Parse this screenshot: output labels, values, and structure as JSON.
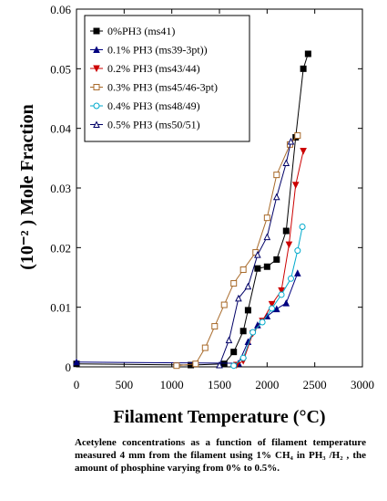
{
  "chart_data": {
    "type": "line",
    "title": "",
    "xlabel": "Filament Temperature (°C)",
    "ylabel": "(10⁻² ) Mole Fraction",
    "xlim": [
      0,
      3000
    ],
    "ylim": [
      0,
      0.06
    ],
    "xticks": [
      "0",
      "500",
      "1000",
      "1500",
      "2000",
      "2500",
      "3000"
    ],
    "yticks": [
      "0",
      "0.01",
      "0.02",
      "0.03",
      "0.04",
      "0.05",
      "0.06"
    ],
    "grid": false,
    "legend_position": "top-left",
    "series": [
      {
        "name": "0%PH3 (ms41)",
        "color": "#000000",
        "marker": "square-filled",
        "points": [
          [
            0,
            0.0005
          ],
          [
            1200,
            0.0003
          ],
          [
            1550,
            0.0005
          ],
          [
            1650,
            0.0025
          ],
          [
            1750,
            0.006
          ],
          [
            1800,
            0.0095
          ],
          [
            1900,
            0.0165
          ],
          [
            2000,
            0.0168
          ],
          [
            2100,
            0.018
          ],
          [
            2200,
            0.0228
          ],
          [
            2300,
            0.0385
          ],
          [
            2380,
            0.05
          ],
          [
            2430,
            0.0525
          ]
        ]
      },
      {
        "name": "0.1% PH3 (ms39-3pt))",
        "color": "#00007f",
        "marker": "triangle-filled",
        "points": [
          [
            0,
            0.0008
          ],
          [
            1700,
            0.0006
          ],
          [
            1800,
            0.0042
          ],
          [
            1900,
            0.007
          ],
          [
            2000,
            0.0085
          ],
          [
            2100,
            0.0097
          ],
          [
            2200,
            0.0107
          ],
          [
            2320,
            0.0157
          ]
        ]
      },
      {
        "name": "0.2% PH3 (ms43/44)",
        "color": "#cc0000",
        "marker": "triangle-down-filled",
        "points": [
          [
            1680,
            0.0003
          ],
          [
            1750,
            0.001
          ],
          [
            1850,
            0.0056
          ],
          [
            1950,
            0.0077
          ],
          [
            2050,
            0.0105
          ],
          [
            2150,
            0.0128
          ],
          [
            2230,
            0.0205
          ],
          [
            2300,
            0.0305
          ],
          [
            2380,
            0.0362
          ]
        ]
      },
      {
        "name": "0.3% PH3 (ms45/46-3pt)",
        "color": "#a86a2a",
        "marker": "square-open",
        "points": [
          [
            1050,
            0.0002
          ],
          [
            1250,
            0.0005
          ],
          [
            1350,
            0.0032
          ],
          [
            1450,
            0.0068
          ],
          [
            1550,
            0.0104
          ],
          [
            1650,
            0.014
          ],
          [
            1750,
            0.0163
          ],
          [
            1880,
            0.0192
          ],
          [
            2000,
            0.025
          ],
          [
            2100,
            0.0322
          ],
          [
            2240,
            0.0373
          ],
          [
            2320,
            0.0388
          ]
        ]
      },
      {
        "name": "0.4% PH3 (ms48/49)",
        "color": "#00aacc",
        "marker": "circle-open",
        "points": [
          [
            1650,
            0.0002
          ],
          [
            1750,
            0.0015
          ],
          [
            1850,
            0.0058
          ],
          [
            1950,
            0.0075
          ],
          [
            2050,
            0.0098
          ],
          [
            2150,
            0.0121
          ],
          [
            2250,
            0.0148
          ],
          [
            2320,
            0.0195
          ],
          [
            2370,
            0.0235
          ]
        ]
      },
      {
        "name": "0.5% PH3 (ms50/51)",
        "color": "#000066",
        "marker": "triangle-open",
        "points": [
          [
            1500,
            0.0003
          ],
          [
            1600,
            0.0045
          ],
          [
            1700,
            0.0115
          ],
          [
            1800,
            0.0135
          ],
          [
            1900,
            0.0188
          ],
          [
            2000,
            0.0218
          ],
          [
            2100,
            0.0285
          ],
          [
            2200,
            0.0342
          ],
          [
            2250,
            0.0378
          ]
        ]
      }
    ]
  },
  "caption": "Acetylene concentrations as a function of filament temperature measured 4 mm from the filament using 1% CH₄ in PH₃ /H₂ , the amount of phosphine varying from 0% to 0.5%."
}
